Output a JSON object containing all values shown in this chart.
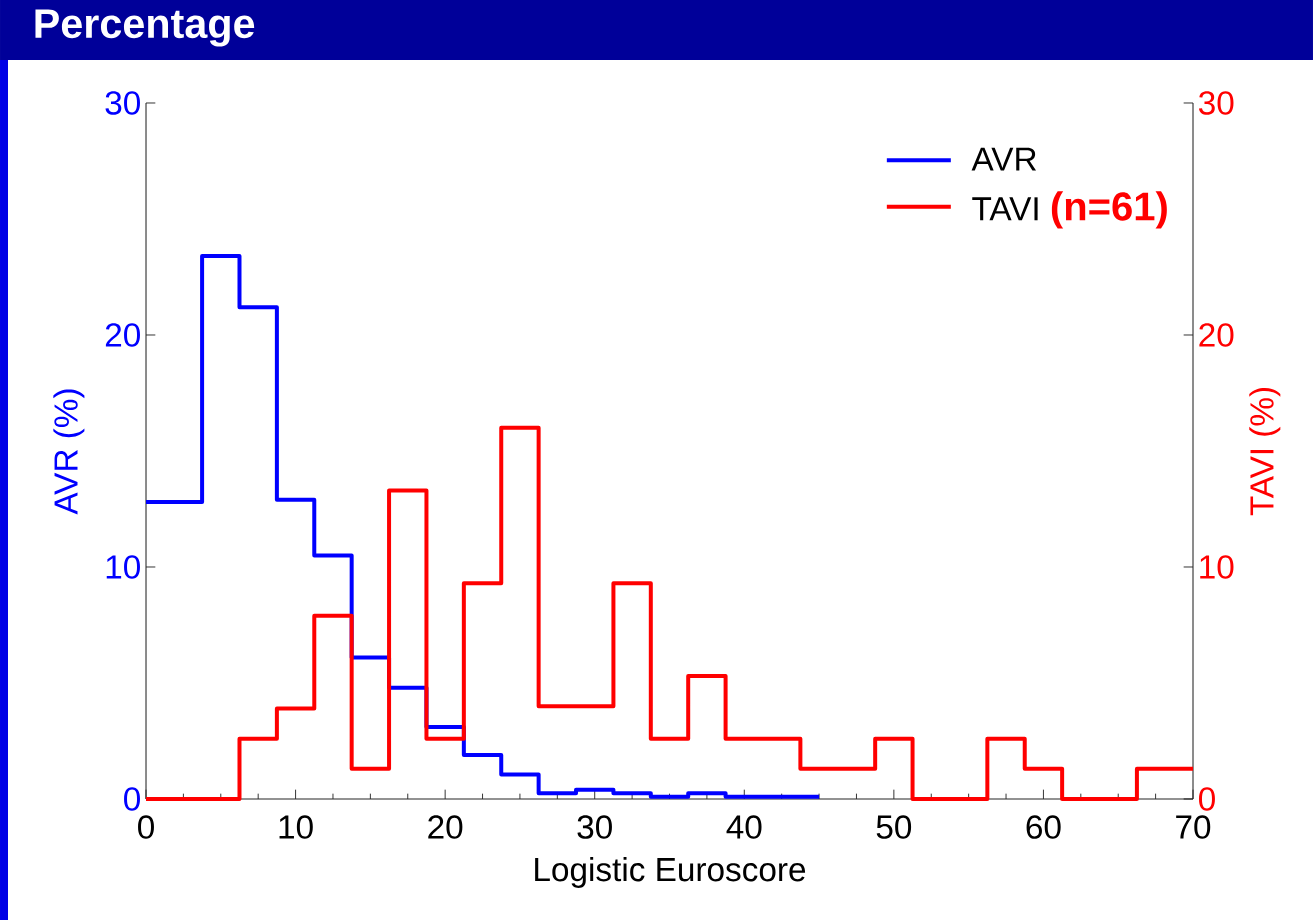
{
  "chart_data": {
    "type": "histogram",
    "title": "Percentage",
    "xlabel": "Logistic Euroscore",
    "ylabel": "AVR  (%)",
    "y2label": "TAVI  (%)",
    "bins": [
      0,
      3.75,
      6.25,
      8.75,
      11.25,
      13.75,
      16.25,
      18.75,
      21.25,
      23.75,
      26.25,
      28.75,
      31.25,
      33.75,
      36.25,
      38.75,
      41.25,
      43.75,
      46.25,
      48.75,
      51.25,
      53.75,
      56.25,
      58.75,
      61.25,
      63.75,
      66.25,
      68.75,
      70
    ],
    "series": [
      {
        "name": "AVR",
        "color": "#0000ff",
        "bins": [
          0,
          3.75,
          6.25,
          8.75,
          11.25,
          13.75,
          16.25,
          18.75,
          21.25,
          23.75,
          26.25,
          28.75,
          31.25,
          33.75,
          36.25,
          38.75,
          41.25,
          43.75,
          45
        ],
        "values": [
          12.8,
          23.4,
          21.2,
          12.9,
          10.5,
          6.1,
          4.8,
          3.1,
          1.9,
          1.06,
          0.25,
          0.4,
          0.25,
          0.1,
          0.25,
          0.1,
          0.1,
          0.1
        ]
      },
      {
        "name": "TAVI",
        "color": "#ff0000",
        "axis": "y2",
        "values": [
          0,
          0,
          2.6,
          3.9,
          7.9,
          1.3,
          13.3,
          2.6,
          9.3,
          16.0,
          4.0,
          4.0,
          9.3,
          2.6,
          5.3,
          2.6,
          2.6,
          1.3,
          1.3,
          2.6,
          0,
          0,
          2.6,
          1.3,
          0,
          0,
          1.3,
          1.3
        ]
      }
    ],
    "xlim": [
      0,
      70
    ],
    "xticks": [
      0,
      10,
      20,
      30,
      40,
      50,
      60,
      70
    ],
    "ylim": [
      0,
      30
    ],
    "yticks": [
      0,
      10,
      20,
      30
    ],
    "y2lim": [
      0,
      30
    ],
    "y2ticks": [
      0,
      10,
      20,
      30
    ],
    "legend": "top right",
    "annotations": [
      "(n=61)"
    ]
  }
}
